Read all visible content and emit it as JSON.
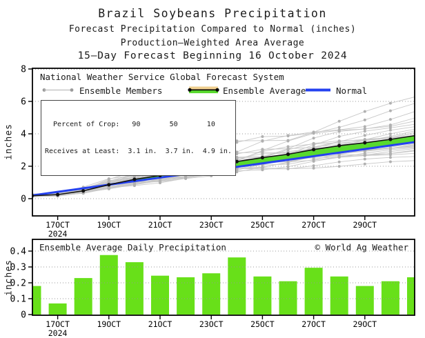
{
  "header": {
    "title": "Brazil Soybeans Precipitation",
    "subtitle1": "Forecast Precipitation Compared to Normal (inches)",
    "subtitle2": "Production–Weighted Area Average",
    "subtitle3": "15–Day Forecast Beginning 16 October 2024"
  },
  "colors": {
    "bar_green": "#68E019",
    "band_green": "#58D92E",
    "normal_blue": "#2441F0",
    "member_line_gray": "#c8c8c8",
    "member_dot_gray": "#b0b0b0",
    "average_black": "#111111",
    "legend_tan": "#EFCF90",
    "grid_gray": "#999999"
  },
  "chart_data": [
    {
      "type": "line",
      "legend": {
        "source": "National Weather Service Global Forecast System",
        "members_label": "Ensemble Members",
        "average_label": "Ensemble Average",
        "normal_label": "Normal"
      },
      "info_box": {
        "row1": "  Percent of Crop:   90       50       10",
        "row2": "Receives at Least:  3.1 in.  3.7 in.  4.9 in."
      },
      "ylabel": "inches",
      "yticks": [
        0,
        2,
        4,
        6,
        8
      ],
      "ylim": [
        0,
        8
      ],
      "grid": "dotted",
      "days": [
        16,
        17,
        18,
        19,
        20,
        21,
        22,
        23,
        24,
        25,
        26,
        27,
        28,
        29,
        30,
        31
      ],
      "x_tick_days": [
        17,
        19,
        21,
        23,
        25,
        27,
        29
      ],
      "x_tick_labels": [
        "17OCT",
        "19OCT",
        "21OCT",
        "23OCT",
        "25OCT",
        "27OCT",
        "29OCT"
      ],
      "year_label": "2024",
      "series": [
        {
          "name": "Ensemble Average",
          "values": [
            0.18,
            0.25,
            0.48,
            0.86,
            1.19,
            1.43,
            1.67,
            1.93,
            2.29,
            2.53,
            2.74,
            3.03,
            3.27,
            3.45,
            3.66,
            3.9
          ]
        },
        {
          "name": "Normal",
          "values": [
            0.2,
            0.42,
            0.64,
            0.86,
            1.08,
            1.3,
            1.52,
            1.74,
            1.96,
            2.18,
            2.4,
            2.62,
            2.84,
            3.06,
            3.28,
            3.5
          ]
        },
        {
          "name": "Ensemble Members",
          "member_final_accumulations": [
            2.35,
            2.6,
            2.8,
            2.95,
            3.0,
            3.1,
            3.15,
            3.2,
            3.25,
            3.3,
            3.35,
            3.4,
            3.5,
            3.55,
            3.6,
            3.65,
            3.7,
            3.75,
            3.8,
            3.9,
            4.0,
            4.1,
            4.2,
            4.3,
            4.45,
            4.6,
            4.8,
            5.0,
            5.4,
            5.9,
            6.3
          ]
        }
      ]
    },
    {
      "type": "bar",
      "title": "Ensemble Average Daily Precipitation",
      "credit": "© World Ag Weather",
      "ylabel": "inches",
      "yticks": [
        0,
        0.1,
        0.2,
        0.3,
        0.4
      ],
      "ylim": [
        0,
        0.47
      ],
      "grid": "dotted",
      "days": [
        16,
        17,
        18,
        19,
        20,
        21,
        22,
        23,
        24,
        25,
        26,
        27,
        28,
        29,
        30,
        31
      ],
      "x_tick_days": [
        17,
        19,
        21,
        23,
        25,
        27,
        29
      ],
      "x_tick_labels": [
        "17OCT",
        "19OCT",
        "21OCT",
        "23OCT",
        "25OCT",
        "27OCT",
        "29OCT"
      ],
      "year_label": "2024",
      "values": [
        0.18,
        0.07,
        0.23,
        0.375,
        0.33,
        0.245,
        0.235,
        0.26,
        0.36,
        0.24,
        0.21,
        0.295,
        0.24,
        0.18,
        0.21,
        0.235
      ]
    }
  ]
}
